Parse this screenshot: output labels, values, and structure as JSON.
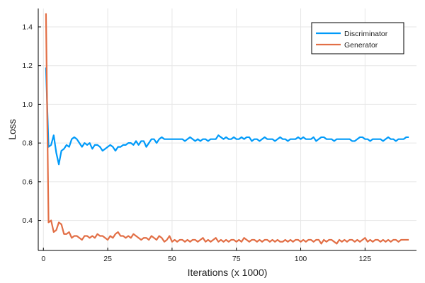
{
  "chart_data": {
    "type": "line",
    "xlabel": "Iterations (x 1000)",
    "ylabel": "Loss",
    "xlim": [
      -2,
      145
    ],
    "ylim": [
      0.245,
      1.495
    ],
    "xticks": [
      0,
      25,
      50,
      75,
      100,
      125
    ],
    "yticks": [
      0.4,
      0.6,
      0.8,
      1.0,
      1.2,
      1.4
    ],
    "xtick_labels": [
      "0",
      "25",
      "50",
      "75",
      "100",
      "125"
    ],
    "ytick_labels": [
      "0.4",
      "0.6",
      "0.8",
      "1.0",
      "1.2",
      "1.4"
    ],
    "grid": true,
    "legend_position": "top-right",
    "series": [
      {
        "name": "Discriminator",
        "color": "#009af9",
        "x": [
          1,
          2,
          3,
          4,
          5,
          6,
          7,
          8,
          9,
          10,
          11,
          12,
          13,
          14,
          15,
          16,
          17,
          18,
          19,
          20,
          21,
          22,
          23,
          24,
          25,
          26,
          27,
          28,
          29,
          30,
          31,
          32,
          33,
          34,
          35,
          36,
          37,
          38,
          39,
          40,
          41,
          42,
          43,
          44,
          45,
          46,
          47,
          48,
          49,
          50,
          51,
          52,
          53,
          54,
          55,
          56,
          57,
          58,
          59,
          60,
          61,
          62,
          63,
          64,
          65,
          66,
          67,
          68,
          69,
          70,
          71,
          72,
          73,
          74,
          75,
          76,
          77,
          78,
          79,
          80,
          81,
          82,
          83,
          84,
          85,
          86,
          87,
          88,
          89,
          90,
          91,
          92,
          93,
          94,
          95,
          96,
          97,
          98,
          99,
          100,
          101,
          102,
          103,
          104,
          105,
          106,
          107,
          108,
          109,
          110,
          111,
          112,
          113,
          114,
          115,
          116,
          117,
          118,
          119,
          120,
          121,
          122,
          123,
          124,
          125,
          126,
          127,
          128,
          129,
          130,
          131,
          132,
          133,
          134,
          135,
          136,
          137,
          138,
          139,
          140,
          141,
          142
        ],
        "values": [
          1.19,
          0.78,
          0.79,
          0.84,
          0.75,
          0.69,
          0.76,
          0.77,
          0.79,
          0.78,
          0.82,
          0.83,
          0.82,
          0.8,
          0.78,
          0.8,
          0.79,
          0.8,
          0.77,
          0.79,
          0.79,
          0.78,
          0.76,
          0.77,
          0.78,
          0.79,
          0.78,
          0.76,
          0.78,
          0.78,
          0.79,
          0.79,
          0.8,
          0.8,
          0.79,
          0.81,
          0.79,
          0.81,
          0.81,
          0.78,
          0.8,
          0.82,
          0.82,
          0.8,
          0.82,
          0.83,
          0.82,
          0.82,
          0.82,
          0.82,
          0.82,
          0.82,
          0.82,
          0.82,
          0.81,
          0.82,
          0.83,
          0.82,
          0.81,
          0.82,
          0.81,
          0.82,
          0.82,
          0.81,
          0.82,
          0.82,
          0.82,
          0.84,
          0.83,
          0.82,
          0.83,
          0.82,
          0.82,
          0.83,
          0.82,
          0.82,
          0.83,
          0.82,
          0.83,
          0.83,
          0.81,
          0.82,
          0.82,
          0.81,
          0.82,
          0.83,
          0.82,
          0.82,
          0.82,
          0.81,
          0.82,
          0.83,
          0.82,
          0.82,
          0.81,
          0.82,
          0.82,
          0.82,
          0.83,
          0.82,
          0.83,
          0.82,
          0.82,
          0.82,
          0.83,
          0.81,
          0.82,
          0.83,
          0.83,
          0.82,
          0.82,
          0.82,
          0.81,
          0.82,
          0.82,
          0.82,
          0.82,
          0.82,
          0.82,
          0.81,
          0.81,
          0.82,
          0.83,
          0.83,
          0.82,
          0.82,
          0.81,
          0.82,
          0.82,
          0.82,
          0.82,
          0.81,
          0.82,
          0.83,
          0.82,
          0.82,
          0.81,
          0.82,
          0.82,
          0.82,
          0.83,
          0.83
        ],
        "label": "Discriminator"
      },
      {
        "name": "Generator",
        "color": "#e26f46",
        "x": [
          1,
          2,
          3,
          4,
          5,
          6,
          7,
          8,
          9,
          10,
          11,
          12,
          13,
          14,
          15,
          16,
          17,
          18,
          19,
          20,
          21,
          22,
          23,
          24,
          25,
          26,
          27,
          28,
          29,
          30,
          31,
          32,
          33,
          34,
          35,
          36,
          37,
          38,
          39,
          40,
          41,
          42,
          43,
          44,
          45,
          46,
          47,
          48,
          49,
          50,
          51,
          52,
          53,
          54,
          55,
          56,
          57,
          58,
          59,
          60,
          61,
          62,
          63,
          64,
          65,
          66,
          67,
          68,
          69,
          70,
          71,
          72,
          73,
          74,
          75,
          76,
          77,
          78,
          79,
          80,
          81,
          82,
          83,
          84,
          85,
          86,
          87,
          88,
          89,
          90,
          91,
          92,
          93,
          94,
          95,
          96,
          97,
          98,
          99,
          100,
          101,
          102,
          103,
          104,
          105,
          106,
          107,
          108,
          109,
          110,
          111,
          112,
          113,
          114,
          115,
          116,
          117,
          118,
          119,
          120,
          121,
          122,
          123,
          124,
          125,
          126,
          127,
          128,
          129,
          130,
          131,
          132,
          133,
          134,
          135,
          136,
          137,
          138,
          139,
          140,
          141,
          142
        ],
        "values": [
          1.47,
          0.39,
          0.4,
          0.34,
          0.35,
          0.39,
          0.38,
          0.33,
          0.33,
          0.34,
          0.31,
          0.32,
          0.32,
          0.31,
          0.3,
          0.32,
          0.32,
          0.31,
          0.32,
          0.31,
          0.33,
          0.32,
          0.32,
          0.31,
          0.3,
          0.32,
          0.31,
          0.33,
          0.34,
          0.32,
          0.32,
          0.31,
          0.32,
          0.31,
          0.33,
          0.32,
          0.31,
          0.3,
          0.31,
          0.31,
          0.3,
          0.32,
          0.31,
          0.3,
          0.32,
          0.31,
          0.29,
          0.3,
          0.32,
          0.29,
          0.3,
          0.29,
          0.3,
          0.3,
          0.29,
          0.3,
          0.29,
          0.3,
          0.3,
          0.29,
          0.3,
          0.31,
          0.29,
          0.3,
          0.29,
          0.3,
          0.31,
          0.29,
          0.3,
          0.29,
          0.3,
          0.29,
          0.3,
          0.3,
          0.29,
          0.3,
          0.29,
          0.31,
          0.3,
          0.29,
          0.3,
          0.3,
          0.29,
          0.3,
          0.29,
          0.3,
          0.3,
          0.29,
          0.3,
          0.29,
          0.3,
          0.29,
          0.29,
          0.3,
          0.29,
          0.3,
          0.29,
          0.3,
          0.3,
          0.29,
          0.3,
          0.29,
          0.3,
          0.3,
          0.29,
          0.3,
          0.3,
          0.28,
          0.3,
          0.29,
          0.3,
          0.3,
          0.29,
          0.28,
          0.3,
          0.29,
          0.3,
          0.29,
          0.3,
          0.3,
          0.29,
          0.3,
          0.29,
          0.3,
          0.31,
          0.29,
          0.3,
          0.29,
          0.3,
          0.3,
          0.29,
          0.3,
          0.29,
          0.3,
          0.29,
          0.3,
          0.3,
          0.29,
          0.3,
          0.3,
          0.3,
          0.3
        ],
        "label": "Generator"
      }
    ]
  }
}
